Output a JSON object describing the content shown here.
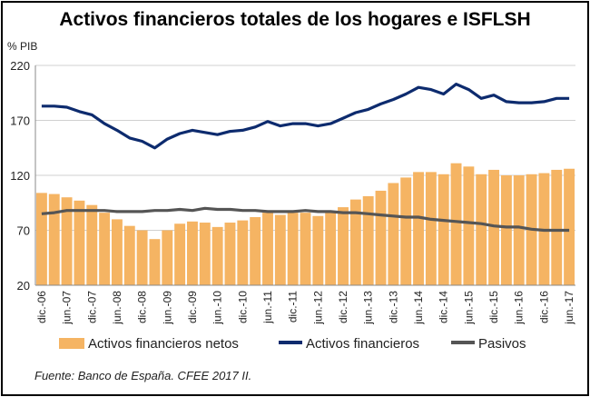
{
  "chart_data": {
    "type": "bar",
    "title": "Activos financieros totales de los hogares e ISFLSH",
    "unit_label": "% PIB",
    "source": "Fuente: Banco de España. CFEE 2017 II.",
    "ylim": [
      20,
      220
    ],
    "yticks": [
      20,
      70,
      120,
      170,
      220
    ],
    "grid": true,
    "legend_position": "bottom",
    "x_tick_labels": [
      "dic.-06",
      "jun.-07",
      "dic.-07",
      "jun.-08",
      "dic.-08",
      "jun.-09",
      "dic.-09",
      "jun.-10",
      "dic.-10",
      "jun.-11",
      "dic.-11",
      "jun.-12",
      "dic.-12",
      "jun.-13",
      "dic.-13",
      "jun.-14",
      "dic.-14",
      "jun.-15",
      "dic.-15",
      "jun.-16",
      "dic.-16",
      "jun.-17"
    ],
    "categories": [
      "dic.-06",
      "mar.-07",
      "jun.-07",
      "sep.-07",
      "dic.-07",
      "mar.-08",
      "jun.-08",
      "sep.-08",
      "dic.-08",
      "mar.-09",
      "jun.-09",
      "sep.-09",
      "dic.-09",
      "mar.-10",
      "jun.-10",
      "sep.-10",
      "dic.-10",
      "mar.-11",
      "jun.-11",
      "sep.-11",
      "dic.-11",
      "mar.-12",
      "jun.-12",
      "sep.-12",
      "dic.-12",
      "mar.-13",
      "jun.-13",
      "sep.-13",
      "dic.-13",
      "mar.-14",
      "jun.-14",
      "sep.-14",
      "dic.-14",
      "mar.-15",
      "jun.-15",
      "sep.-15",
      "dic.-15",
      "mar.-16",
      "jun.-16",
      "sep.-16",
      "dic.-16",
      "mar.-17",
      "jun.-17"
    ],
    "series": [
      {
        "name": "Activos financieros netos",
        "type": "bar",
        "color": "#f5b463",
        "values": [
          104,
          103,
          100,
          97,
          93,
          86,
          80,
          74,
          70,
          62,
          70,
          76,
          78,
          77,
          73,
          77,
          79,
          82,
          86,
          84,
          86,
          86,
          83,
          86,
          91,
          98,
          101,
          106,
          113,
          118,
          123,
          123,
          121,
          131,
          128,
          121,
          125,
          120,
          120,
          121,
          122,
          125,
          126
        ]
      },
      {
        "name": "Activos financieros",
        "type": "line",
        "color": "#0d2b6e",
        "values": [
          183,
          183,
          182,
          178,
          175,
          167,
          161,
          154,
          151,
          145,
          153,
          158,
          161,
          159,
          157,
          160,
          161,
          164,
          169,
          165,
          167,
          167,
          165,
          167,
          172,
          177,
          180,
          185,
          189,
          194,
          200,
          198,
          194,
          203,
          198,
          190,
          193,
          187,
          186,
          186,
          187,
          190,
          190
        ]
      },
      {
        "name": "Pasivos",
        "type": "line",
        "color": "#555555",
        "values": [
          85,
          86,
          88,
          88,
          88,
          88,
          87,
          87,
          87,
          88,
          88,
          89,
          88,
          90,
          89,
          89,
          88,
          88,
          87,
          87,
          87,
          88,
          87,
          87,
          86,
          86,
          85,
          84,
          83,
          82,
          82,
          80,
          79,
          78,
          77,
          76,
          74,
          73,
          73,
          71,
          70,
          70,
          70
        ]
      }
    ]
  }
}
